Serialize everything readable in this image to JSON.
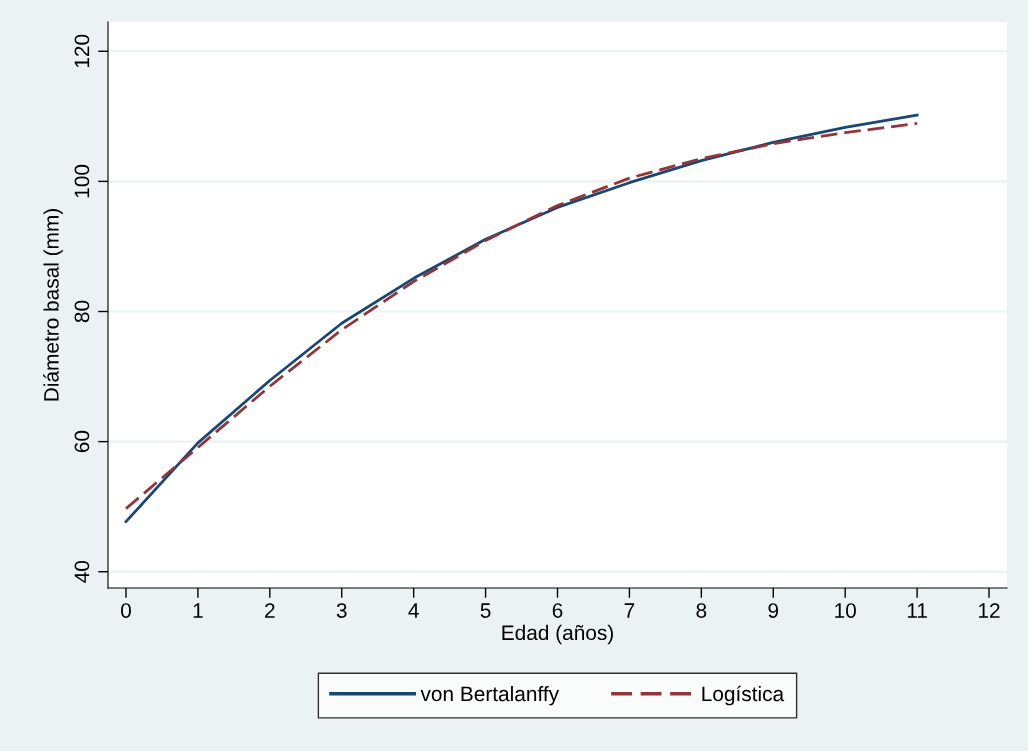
{
  "chart_data": {
    "type": "line",
    "xlabel": "Edad (años)",
    "ylabel": "Diámetro basal (mm)",
    "x": [
      0,
      1,
      2,
      3,
      4,
      5,
      6,
      7,
      8,
      9,
      10,
      11
    ],
    "series": [
      {
        "name": "von Bertalanffy",
        "color": "#1a476f",
        "line_style": "solid",
        "values": [
          47.7,
          59.8,
          69.4,
          78.2,
          85.1,
          91.1,
          96.0,
          99.8,
          103.2,
          106.0,
          108.3,
          110.2
        ]
      },
      {
        "name": "Logística",
        "color": "#90353b",
        "line_style": "dashed",
        "values": [
          49.7,
          59.1,
          68.5,
          77.2,
          84.6,
          90.9,
          96.3,
          100.5,
          103.5,
          105.8,
          107.5,
          108.9
        ]
      }
    ],
    "xlim": [
      -0.25,
      12.25
    ],
    "xticks": [
      0,
      1,
      2,
      3,
      4,
      5,
      6,
      7,
      8,
      9,
      10,
      11,
      12
    ],
    "ylim": [
      37.5,
      124.5
    ],
    "yticks": [
      40,
      60,
      80,
      100,
      120
    ],
    "grid": "y",
    "legend": "bottom",
    "marker": "none"
  }
}
